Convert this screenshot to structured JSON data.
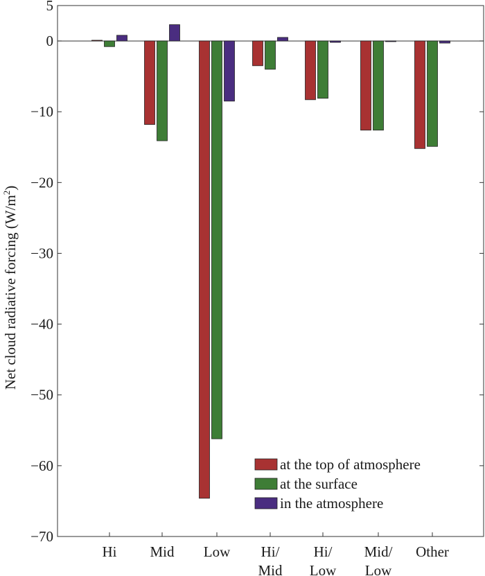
{
  "chart_data": {
    "type": "bar",
    "categories": [
      "Hi",
      "Mid",
      "Low",
      "Hi/Mid",
      "Hi/Low",
      "Mid/Low",
      "Other"
    ],
    "category_lines": [
      [
        "Hi"
      ],
      [
        "Mid"
      ],
      [
        "Low"
      ],
      [
        "Hi/",
        "Mid"
      ],
      [
        "Hi/",
        "Low"
      ],
      [
        "Mid/",
        "Low"
      ],
      [
        "Other"
      ]
    ],
    "series": [
      {
        "name": "at the top of atmosphere",
        "color": "#a83232",
        "values": [
          0.1,
          -11.8,
          -64.6,
          -3.5,
          -8.3,
          -12.6,
          -15.2
        ]
      },
      {
        "name": "at the surface",
        "color": "#3e7d36",
        "values": [
          -0.8,
          -14.1,
          -56.2,
          -4.0,
          -8.1,
          -12.6,
          -14.9
        ]
      },
      {
        "name": "in the atmosphere",
        "color": "#4a2d80",
        "values": [
          0.8,
          2.3,
          -8.5,
          0.5,
          -0.2,
          0.0,
          -0.3
        ]
      }
    ],
    "ylabel": "Net cloud radiative forcing (W/m²)",
    "ylabel_text": "Net cloud radiative forcing (W/m",
    "ylabel_sup": "2",
    "ylabel_close": ")",
    "ylim": [
      -70,
      5
    ],
    "yticks": [
      5,
      0,
      -10,
      -20,
      -30,
      -40,
      -50,
      -60,
      -70
    ],
    "ytick_labels": [
      "5",
      "0",
      "−10",
      "−20",
      "−30",
      "−40",
      "−50",
      "−60",
      "−70"
    ],
    "grid": false,
    "zero_line": true,
    "legend_position": "bottom-right"
  }
}
